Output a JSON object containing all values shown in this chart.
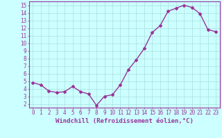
{
  "x": [
    0,
    1,
    2,
    3,
    4,
    5,
    6,
    7,
    8,
    9,
    10,
    11,
    12,
    13,
    14,
    15,
    16,
    17,
    18,
    19,
    20,
    21,
    22,
    23
  ],
  "y": [
    4.8,
    4.5,
    3.7,
    3.5,
    3.6,
    4.3,
    3.6,
    3.3,
    1.8,
    3.0,
    3.2,
    4.5,
    6.5,
    7.8,
    9.3,
    11.4,
    12.3,
    14.2,
    14.6,
    15.0,
    14.7,
    13.9,
    11.8,
    11.5
  ],
  "line_color": "#993399",
  "marker": "D",
  "marker_size": 2,
  "line_width": 1.0,
  "background_color": "#ccffff",
  "grid_color": "#aadddd",
  "xlabel": "Windchill (Refroidissement éolien,°C)",
  "ylabel": "",
  "xlim": [
    -0.5,
    23.5
  ],
  "ylim": [
    1.5,
    15.5
  ],
  "yticks": [
    2,
    3,
    4,
    5,
    6,
    7,
    8,
    9,
    10,
    11,
    12,
    13,
    14,
    15
  ],
  "xticks": [
    0,
    1,
    2,
    3,
    4,
    5,
    6,
    7,
    8,
    9,
    10,
    11,
    12,
    13,
    14,
    15,
    16,
    17,
    18,
    19,
    20,
    21,
    22,
    23
  ],
  "tick_color": "#993399",
  "tick_labelsize": 5.5,
  "xlabel_fontsize": 6.5,
  "xlabel_color": "#993399",
  "spine_color": "#993399"
}
